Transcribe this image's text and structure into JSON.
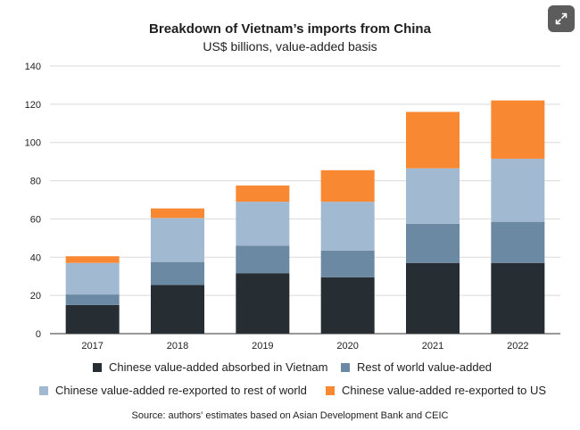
{
  "chart_data": {
    "type": "bar",
    "stacked": true,
    "title": "Breakdown of Vietnam’s imports from China",
    "subtitle": "US$ billions, value-added basis",
    "categories": [
      "2017",
      "2018",
      "2019",
      "2020",
      "2021",
      "2022"
    ],
    "ylim": [
      0,
      140
    ],
    "yticks": [
      0,
      20,
      40,
      60,
      80,
      100,
      120,
      140
    ],
    "grid": true,
    "legend_position": "bottom",
    "series": [
      {
        "name": "Chinese value-added absorbed in Vietnam",
        "color": "#262d33",
        "values": [
          15,
          25.5,
          31.5,
          29.5,
          37,
          37
        ]
      },
      {
        "name": "Rest of world value-added",
        "color": "#6b89a3",
        "values": [
          5.5,
          12,
          14.5,
          14,
          20.5,
          21.5
        ]
      },
      {
        "name": "Chinese value-added re-exported to rest of world",
        "color": "#a2bad1",
        "values": [
          16.5,
          23,
          23,
          25.5,
          29,
          33
        ]
      },
      {
        "name": "Chinese value-added re-exported to US",
        "color": "#f98833",
        "values": [
          3.5,
          5,
          8.5,
          16.5,
          29.5,
          30.5
        ]
      }
    ],
    "source": "Source: authors' estimates based on Asian Development Bank and CEIC"
  },
  "expand_icon": "expand-arrows-icon"
}
